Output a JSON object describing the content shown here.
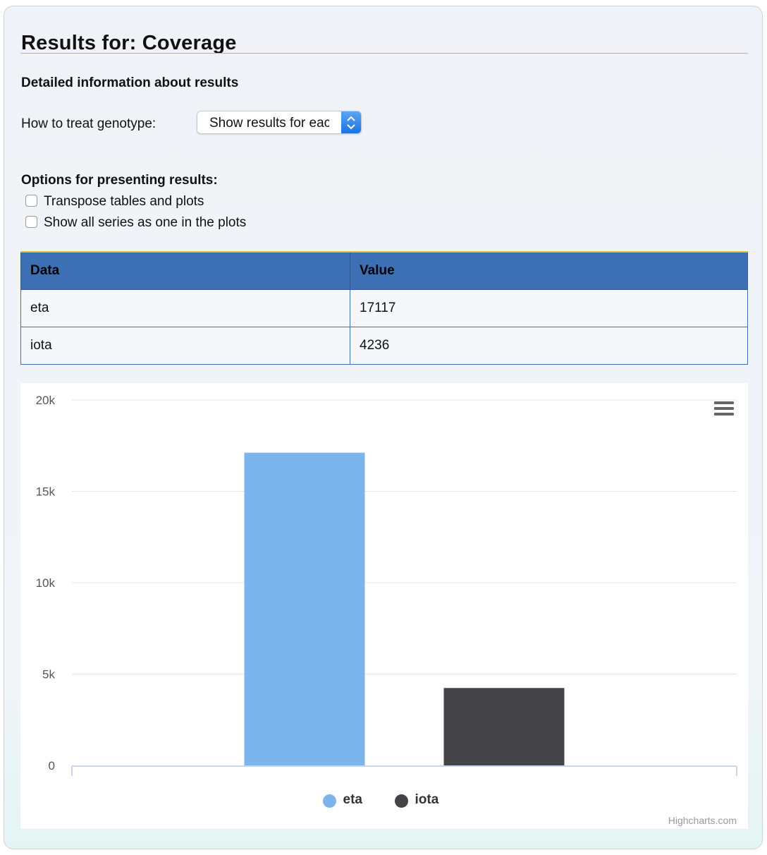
{
  "page": {
    "title": "Results for: Coverage",
    "subheading": "Detailed information about results"
  },
  "genotype": {
    "label": "How to treat genotype:",
    "selected": "Show results for each genotype"
  },
  "options": {
    "heading": "Options for presenting results:",
    "transpose_label": "Transpose tables and plots",
    "transpose_checked": false,
    "one_series_label": "Show all series as one in the plots",
    "one_series_checked": false
  },
  "table": {
    "headers": [
      "Data",
      "Value"
    ],
    "rows": [
      [
        "eta",
        "17117"
      ],
      [
        "iota",
        "4236"
      ]
    ]
  },
  "chart_data": {
    "type": "bar",
    "categories": [
      ""
    ],
    "series": [
      {
        "name": "eta",
        "values": [
          17117
        ],
        "color": "#7cb5ec"
      },
      {
        "name": "iota",
        "values": [
          4236
        ],
        "color": "#434348"
      }
    ],
    "ylim": [
      0,
      20000
    ],
    "yticks": [
      0,
      5000,
      10000,
      15000,
      20000
    ],
    "ytick_labels": [
      "0",
      "5k",
      "10k",
      "15k",
      "20k"
    ],
    "grid": true,
    "legend": "bottom-center",
    "credits": "Highcharts.com"
  }
}
